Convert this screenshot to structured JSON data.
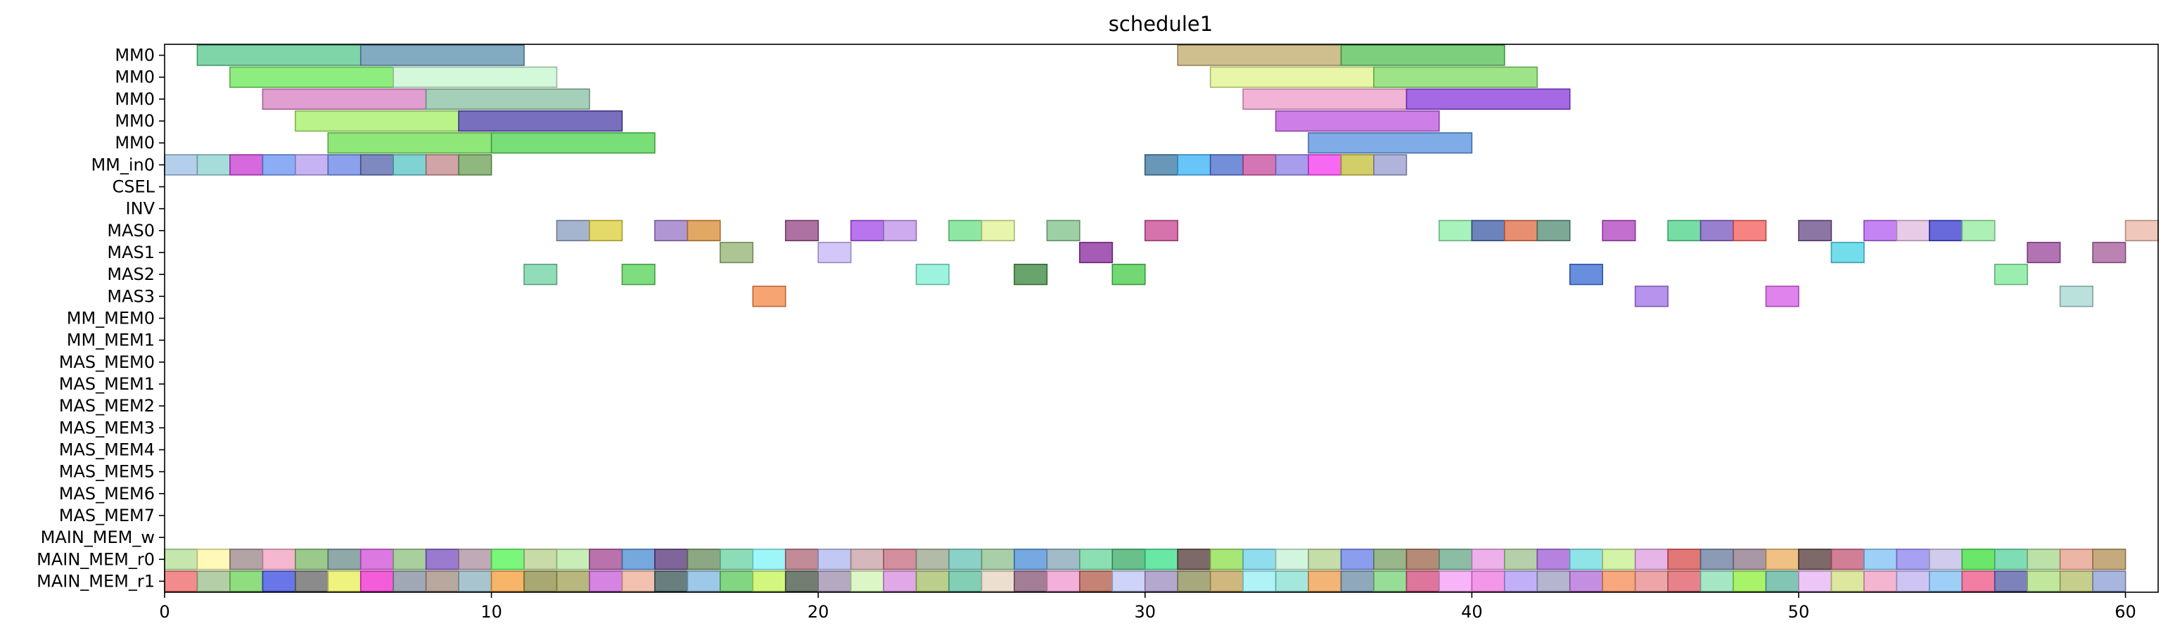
{
  "chart_data": {
    "type": "gantt",
    "title": "schedule1",
    "xlabel": "",
    "ylabel": "",
    "xlim": [
      0,
      61
    ],
    "x_ticks": [
      0,
      10,
      20,
      30,
      40,
      50,
      60
    ],
    "grid": false,
    "resources": [
      "MM0",
      "MM0",
      "MM0",
      "MM0",
      "MM0",
      "MM_in0",
      "CSEL",
      "INV",
      "MAS0",
      "MAS1",
      "MAS2",
      "MAS3",
      "MM_MEM0",
      "MM_MEM1",
      "MAS_MEM0",
      "MAS_MEM1",
      "MAS_MEM2",
      "MAS_MEM3",
      "MAS_MEM4",
      "MAS_MEM5",
      "MAS_MEM6",
      "MAS_MEM7",
      "MAIN_MEM_w",
      "MAIN_MEM_r0",
      "MAIN_MEM_r1"
    ],
    "tasks": [
      {
        "row": 0,
        "start": 1,
        "end": 6,
        "color": "#5cc98f"
      },
      {
        "row": 0,
        "start": 6,
        "end": 11,
        "color": "#5f93b0"
      },
      {
        "row": 0,
        "start": 31,
        "end": 36,
        "color": "#c2ad70"
      },
      {
        "row": 0,
        "start": 36,
        "end": 41,
        "color": "#58c25a"
      },
      {
        "row": 1,
        "start": 2,
        "end": 7,
        "color": "#6de85a"
      },
      {
        "row": 1,
        "start": 7,
        "end": 12,
        "color": "#c6f7d0"
      },
      {
        "row": 1,
        "start": 32,
        "end": 37,
        "color": "#e2f58e"
      },
      {
        "row": 1,
        "start": 37,
        "end": 42,
        "color": "#82dc66"
      },
      {
        "row": 2,
        "start": 3,
        "end": 8,
        "color": "#d883c3"
      },
      {
        "row": 2,
        "start": 8,
        "end": 13,
        "color": "#8cc2a5"
      },
      {
        "row": 2,
        "start": 33,
        "end": 38,
        "color": "#ee9fcb"
      },
      {
        "row": 2,
        "start": 38,
        "end": 43,
        "color": "#8c3fdb"
      },
      {
        "row": 3,
        "start": 4,
        "end": 9,
        "color": "#a8ef6a"
      },
      {
        "row": 3,
        "start": 9,
        "end": 14,
        "color": "#5246ac"
      },
      {
        "row": 3,
        "start": 34,
        "end": 39,
        "color": "#c05ae0"
      },
      {
        "row": 4,
        "start": 5,
        "end": 10,
        "color": "#6ee052"
      },
      {
        "row": 4,
        "start": 10,
        "end": 15,
        "color": "#52d552"
      },
      {
        "row": 4,
        "start": 35,
        "end": 40,
        "color": "#5b93e0"
      },
      {
        "row": 5,
        "start": 0,
        "end": 1,
        "color": "#9fc0e6"
      },
      {
        "row": 5,
        "start": 1,
        "end": 2,
        "color": "#8dd3cf"
      },
      {
        "row": 5,
        "start": 2,
        "end": 3,
        "color": "#c93fd3"
      },
      {
        "row": 5,
        "start": 3,
        "end": 4,
        "color": "#6c95f2"
      },
      {
        "row": 5,
        "start": 4,
        "end": 5,
        "color": "#b59ef0"
      },
      {
        "row": 5,
        "start": 5,
        "end": 6,
        "color": "#6a86e6"
      },
      {
        "row": 5,
        "start": 6,
        "end": 7,
        "color": "#5a68ad"
      },
      {
        "row": 5,
        "start": 7,
        "end": 8,
        "color": "#5dc6c6"
      },
      {
        "row": 5,
        "start": 8,
        "end": 9,
        "color": "#c48a90"
      },
      {
        "row": 5,
        "start": 9,
        "end": 10,
        "color": "#6fa35a"
      },
      {
        "row": 5,
        "start": 30,
        "end": 31,
        "color": "#3d7aa3"
      },
      {
        "row": 5,
        "start": 31,
        "end": 32,
        "color": "#3eb5f5"
      },
      {
        "row": 5,
        "start": 32,
        "end": 33,
        "color": "#4c6fd0"
      },
      {
        "row": 5,
        "start": 33,
        "end": 34,
        "color": "#c9509f"
      },
      {
        "row": 5,
        "start": 34,
        "end": 35,
        "color": "#8e82e6"
      },
      {
        "row": 5,
        "start": 35,
        "end": 36,
        "color": "#f53ff0"
      },
      {
        "row": 5,
        "start": 36,
        "end": 37,
        "color": "#c6c23d"
      },
      {
        "row": 5,
        "start": 37,
        "end": 38,
        "color": "#9a9ed0"
      },
      {
        "row": 8,
        "start": 12,
        "end": 13,
        "color": "#8da0c2"
      },
      {
        "row": 8,
        "start": 13,
        "end": 14,
        "color": "#dccf3f"
      },
      {
        "row": 8,
        "start": 15,
        "end": 16,
        "color": "#9a78c6"
      },
      {
        "row": 8,
        "start": 16,
        "end": 17,
        "color": "#d98f3a"
      },
      {
        "row": 8,
        "start": 19,
        "end": 20,
        "color": "#974a88"
      },
      {
        "row": 8,
        "start": 21,
        "end": 22,
        "color": "#a44ee8"
      },
      {
        "row": 8,
        "start": 22,
        "end": 23,
        "color": "#c092ea"
      },
      {
        "row": 8,
        "start": 24,
        "end": 25,
        "color": "#6fe08a"
      },
      {
        "row": 8,
        "start": 25,
        "end": 26,
        "color": "#e0f296"
      },
      {
        "row": 8,
        "start": 27,
        "end": 28,
        "color": "#82c48c"
      },
      {
        "row": 8,
        "start": 30,
        "end": 31,
        "color": "#cc4c95"
      },
      {
        "row": 8,
        "start": 39,
        "end": 40,
        "color": "#8ff0a8"
      },
      {
        "row": 8,
        "start": 40,
        "end": 41,
        "color": "#4260a8"
      },
      {
        "row": 8,
        "start": 41,
        "end": 42,
        "color": "#e07048"
      },
      {
        "row": 8,
        "start": 42,
        "end": 43,
        "color": "#5a8f78"
      },
      {
        "row": 8,
        "start": 44,
        "end": 45,
        "color": "#b247c2"
      },
      {
        "row": 8,
        "start": 46,
        "end": 47,
        "color": "#4fd38c"
      },
      {
        "row": 8,
        "start": 47,
        "end": 48,
        "color": "#7c5cc2"
      },
      {
        "row": 8,
        "start": 48,
        "end": 49,
        "color": "#f5605f"
      },
      {
        "row": 8,
        "start": 50,
        "end": 51,
        "color": "#6a4f8a"
      },
      {
        "row": 8,
        "start": 52,
        "end": 53,
        "color": "#b561ef"
      },
      {
        "row": 8,
        "start": 53,
        "end": 54,
        "color": "#e2bde0"
      },
      {
        "row": 8,
        "start": 54,
        "end": 55,
        "color": "#3e3fcf"
      },
      {
        "row": 8,
        "start": 55,
        "end": 56,
        "color": "#96eca0"
      },
      {
        "row": 8,
        "start": 60,
        "end": 61,
        "color": "#eab7a8"
      },
      {
        "row": 9,
        "start": 17,
        "end": 18,
        "color": "#96b574"
      },
      {
        "row": 9,
        "start": 20,
        "end": 21,
        "color": "#c7b6f6"
      },
      {
        "row": 9,
        "start": 28,
        "end": 29,
        "color": "#8a2e9f"
      },
      {
        "row": 9,
        "start": 51,
        "end": 52,
        "color": "#4ad3e6"
      },
      {
        "row": 9,
        "start": 57,
        "end": 58,
        "color": "#9c4c9c"
      },
      {
        "row": 9,
        "start": 59,
        "end": 60,
        "color": "#a8609c"
      },
      {
        "row": 10,
        "start": 11,
        "end": 12,
        "color": "#72d4a5"
      },
      {
        "row": 10,
        "start": 14,
        "end": 15,
        "color": "#5ad35a"
      },
      {
        "row": 10,
        "start": 23,
        "end": 24,
        "color": "#82f0d3"
      },
      {
        "row": 10,
        "start": 26,
        "end": 27,
        "color": "#3f8a42"
      },
      {
        "row": 10,
        "start": 29,
        "end": 30,
        "color": "#4bcc4c"
      },
      {
        "row": 10,
        "start": 43,
        "end": 44,
        "color": "#3d6fd3"
      },
      {
        "row": 10,
        "start": 56,
        "end": 57,
        "color": "#7fe99a"
      },
      {
        "row": 11,
        "start": 18,
        "end": 19,
        "color": "#f58b4b"
      },
      {
        "row": 11,
        "start": 45,
        "end": 46,
        "color": "#a374e8"
      },
      {
        "row": 11,
        "start": 49,
        "end": 50,
        "color": "#d860e8"
      },
      {
        "row": 11,
        "start": 58,
        "end": 59,
        "color": "#a8d8d3"
      }
    ],
    "memory_rows": {
      "MAIN_MEM_r0": {
        "row": 23,
        "start": 0,
        "colors": [
          "#b5e096",
          "#fff7a3",
          "#9c8a8a",
          "#f2a1c2",
          "#7fb86a",
          "#6f8f8f",
          "#d153d9",
          "#8fc281",
          "#7e55c2",
          "#b092a3",
          "#54f554",
          "#b8cf8c",
          "#b8e8a3",
          "#a74a96",
          "#4f8fd3",
          "#5b3a7d",
          "#6b8f60",
          "#6bd3a3",
          "#82f5f7",
          "#b06a7a",
          "#b0b8f0",
          "#c9a4a8",
          "#c76f82",
          "#9ba88f",
          "#6ac4b8",
          "#8fc28f",
          "#4f8fd9",
          "#86a8b8",
          "#6ad69c",
          "#3fae6a",
          "#3fe08c",
          "#5a3f3f",
          "#8fe04f",
          "#6fd3e8",
          "#c4f2d6",
          "#b5d38f",
          "#6a82e8",
          "#7aa36a",
          "#9f6a4f",
          "#6aaa8c",
          "#e89ae6",
          "#a0c290",
          "#a060d6",
          "#6fdce0",
          "#c6f08f",
          "#dfa0e0",
          "#d9514f",
          "#6a7fa0",
          "#8f7a8c",
          "#eab061",
          "#5a3f3f",
          "#c45a7a",
          "#82c2f5",
          "#8f86f0",
          "#c4bee8",
          "#40e040",
          "#5ad3a0",
          "#a8d88f",
          "#e8a08c",
          "#b5925a"
        ]
      },
      "MAIN_MEM_r1": {
        "row": 24,
        "start": 0,
        "colors": [
          "#ee6a6a",
          "#9fc28f",
          "#6fd35a",
          "#3f4fe0",
          "#6a6a6a",
          "#e8f05a",
          "#f030d0",
          "#8590a0",
          "#a58f82",
          "#8fb5c2",
          "#f5a03f",
          "#8f8f4a",
          "#a3a35a",
          "#c963d9",
          "#f0b09a",
          "#3f5a5a",
          "#82b8e0",
          "#5fc95f",
          "#c6f55a",
          "#4a5a4a",
          "#a091b0",
          "#d2f5b5",
          "#d890e0",
          "#a8c06a",
          "#5fc2a0",
          "#e8d6c2",
          "#8a5a7a",
          "#f09ad0",
          "#b5604f",
          "#c0c8f5",
          "#a08fc2",
          "#8f8f5a",
          "#c2a35a",
          "#9af0f5",
          "#8ae0d3",
          "#f0a04f",
          "#6f8fa8",
          "#7ad37a",
          "#d34f7f",
          "#f5a0f5",
          "#f07ae0",
          "#b09af5",
          "#a0a0c2",
          "#b56fd9",
          "#f5905a",
          "#e88c8f",
          "#e05f6a",
          "#8ce0b5",
          "#8ff040",
          "#5fb5a0",
          "#e8b5f5",
          "#d3e082",
          "#f0a0c2",
          "#c2b5f0",
          "#82c2f5",
          "#f05a8a",
          "#5a5fa8",
          "#b0e082",
          "#b5c26a",
          "#8fa0d3"
        ]
      }
    }
  }
}
